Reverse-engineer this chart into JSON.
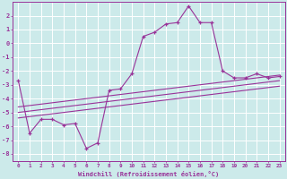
{
  "xlabel": "Windchill (Refroidissement éolien,°C)",
  "bg_color": "#cceaea",
  "grid_color": "#aad4d4",
  "line_color": "#993399",
  "xlim": [
    -0.5,
    23.5
  ],
  "ylim": [
    -8.5,
    3.0
  ],
  "xticks": [
    0,
    1,
    2,
    3,
    4,
    5,
    6,
    7,
    8,
    9,
    10,
    11,
    12,
    13,
    14,
    15,
    16,
    17,
    18,
    19,
    20,
    21,
    22,
    23
  ],
  "yticks": [
    -8,
    -7,
    -6,
    -5,
    -4,
    -3,
    -2,
    -1,
    0,
    1,
    2
  ],
  "main_x": [
    0,
    1,
    2,
    3,
    4,
    5,
    6,
    7,
    8,
    9,
    10,
    11,
    12,
    13,
    14,
    15,
    16,
    17,
    18,
    19,
    20,
    21,
    22,
    23
  ],
  "main_y": [
    -2.7,
    -6.5,
    -5.5,
    -5.5,
    -5.9,
    -5.8,
    -7.6,
    -7.2,
    -3.4,
    -3.3,
    -2.2,
    0.5,
    0.8,
    1.4,
    1.5,
    2.7,
    1.5,
    1.5,
    -2.0,
    -2.5,
    -2.5,
    -2.2,
    -2.5,
    -2.4
  ],
  "line1_x": [
    0,
    23
  ],
  "line1_y": [
    -4.6,
    -2.3
  ],
  "line2_x": [
    0,
    23
  ],
  "line2_y": [
    -5.0,
    -2.7
  ],
  "line3_x": [
    0,
    23
  ],
  "line3_y": [
    -5.4,
    -3.1
  ]
}
